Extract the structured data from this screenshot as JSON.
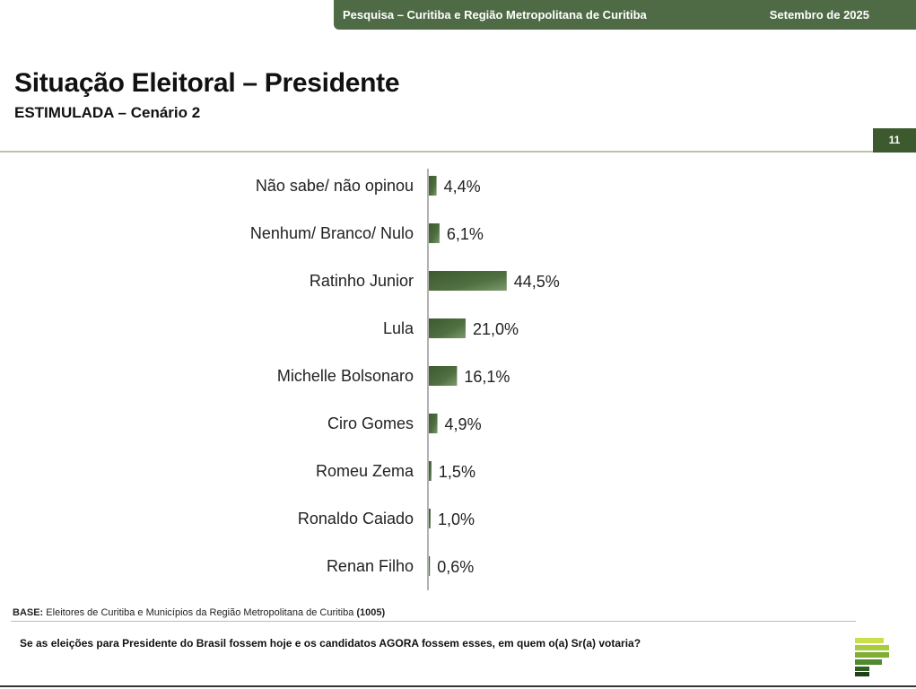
{
  "header": {
    "survey": "Pesquisa – Curitiba e Região Metropolitana de Curitiba",
    "date": "Setembro de 2025"
  },
  "title": "Situação Eleitoral – Presidente",
  "subtitle": "ESTIMULADA – Cenário 2",
  "page_number": "11",
  "footer": {
    "base_label": "BASE:",
    "base_text": "Eleitores de Curitiba e Municípios da Região Metropolitana de Curitiba",
    "base_count": "(1005)",
    "question": "Se as eleições para Presidente do Brasil fossem hoje e os candidatos AGORA fossem esses, em quem o(a) Sr(a) votaria?"
  },
  "logo": {
    "icon": "pesquisa-logo-icon"
  },
  "colors": {
    "brand": "#4e6b45",
    "bar": "#3d5a2f",
    "bar_light": "#6f8f60",
    "line": "#b9c4a6"
  },
  "chart_data": {
    "type": "bar",
    "orientation": "horizontal",
    "categories": [
      "Não sabe/ não opinou",
      "Nenhum/ Branco/ Nulo",
      "Ratinho Junior",
      "Lula",
      "Michelle Bolsonaro",
      "Ciro Gomes",
      "Romeu Zema",
      "Ronaldo Caiado",
      "Renan Filho"
    ],
    "values": [
      4.4,
      6.1,
      44.5,
      21.0,
      16.1,
      4.9,
      1.5,
      1.0,
      0.6
    ],
    "value_labels": [
      "4,4%",
      "6,1%",
      "44,5%",
      "21,0%",
      "16,1%",
      "4,9%",
      "1,5%",
      "1,0%",
      "0,6%"
    ],
    "xlim": [
      0,
      100
    ],
    "grid": false
  }
}
